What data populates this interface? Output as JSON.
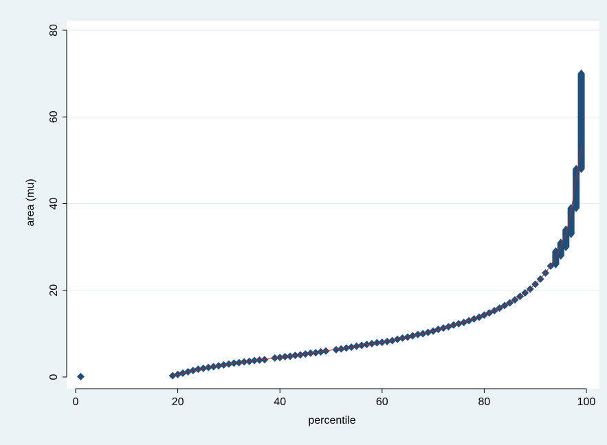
{
  "colors": {
    "outer_background": "#eaf2f3",
    "plot_background": "#ffffff",
    "marker": "#1f4e79",
    "fit_line": "#b0282e",
    "grid": "#e4ecec",
    "axis": "#000000"
  },
  "chart_data": {
    "type": "scatter",
    "xlabel": "percentile",
    "ylabel": "area (mu)",
    "xlim": [
      0,
      100
    ],
    "ylim": [
      0,
      80
    ],
    "x_ticks": [
      0,
      20,
      40,
      60,
      80,
      100
    ],
    "y_ticks": [
      0,
      20,
      40,
      60,
      80
    ],
    "grid": "horizontal",
    "marker": "diamond",
    "series": [
      {
        "values": [
          {
            "x": 1,
            "y": 0.1
          },
          {
            "x": 19,
            "y": 0.3
          },
          {
            "x": 20,
            "y": 0.6
          },
          {
            "x": 21,
            "y": 0.9
          },
          {
            "x": 22,
            "y": 1.2
          },
          {
            "x": 23,
            "y": 1.5
          },
          {
            "x": 24,
            "y": 1.8
          },
          {
            "x": 25,
            "y": 2.0
          },
          {
            "x": 26,
            "y": 2.2
          },
          {
            "x": 27,
            "y": 2.4
          },
          {
            "x": 28,
            "y": 2.6
          },
          {
            "x": 29,
            "y": 2.8
          },
          {
            "x": 30,
            "y": 3.0
          },
          {
            "x": 31,
            "y": 3.2
          },
          {
            "x": 32,
            "y": 3.3
          },
          {
            "x": 33,
            "y": 3.5
          },
          {
            "x": 34,
            "y": 3.6
          },
          {
            "x": 35,
            "y": 3.8
          },
          {
            "x": 36,
            "y": 3.9
          },
          {
            "x": 37,
            "y": 4.0
          },
          {
            "x": 39,
            "y": 4.4
          },
          {
            "x": 40,
            "y": 4.5
          },
          {
            "x": 41,
            "y": 4.7
          },
          {
            "x": 42,
            "y": 4.8
          },
          {
            "x": 43,
            "y": 5.0
          },
          {
            "x": 44,
            "y": 5.1
          },
          {
            "x": 45,
            "y": 5.3
          },
          {
            "x": 46,
            "y": 5.5
          },
          {
            "x": 47,
            "y": 5.6
          },
          {
            "x": 48,
            "y": 5.8
          },
          {
            "x": 49,
            "y": 6.0
          },
          {
            "x": 51,
            "y": 6.3
          },
          {
            "x": 52,
            "y": 6.5
          },
          {
            "x": 53,
            "y": 6.7
          },
          {
            "x": 54,
            "y": 6.9
          },
          {
            "x": 55,
            "y": 7.1
          },
          {
            "x": 56,
            "y": 7.3
          },
          {
            "x": 57,
            "y": 7.5
          },
          {
            "x": 58,
            "y": 7.7
          },
          {
            "x": 59,
            "y": 7.9
          },
          {
            "x": 60,
            "y": 8.0
          },
          {
            "x": 61,
            "y": 8.2
          },
          {
            "x": 62,
            "y": 8.4
          },
          {
            "x": 63,
            "y": 8.7
          },
          {
            "x": 64,
            "y": 9.0
          },
          {
            "x": 65,
            "y": 9.2
          },
          {
            "x": 66,
            "y": 9.5
          },
          {
            "x": 67,
            "y": 9.8
          },
          {
            "x": 68,
            "y": 10.0
          },
          {
            "x": 69,
            "y": 10.3
          },
          {
            "x": 70,
            "y": 10.6
          },
          {
            "x": 71,
            "y": 11.0
          },
          {
            "x": 72,
            "y": 11.3
          },
          {
            "x": 73,
            "y": 11.6
          },
          {
            "x": 74,
            "y": 12.0
          },
          {
            "x": 75,
            "y": 12.3
          },
          {
            "x": 76,
            "y": 12.6
          },
          {
            "x": 77,
            "y": 13.0
          },
          {
            "x": 78,
            "y": 13.4
          },
          {
            "x": 79,
            "y": 13.8
          },
          {
            "x": 80,
            "y": 14.3
          },
          {
            "x": 81,
            "y": 14.8
          },
          {
            "x": 82,
            "y": 15.3
          },
          {
            "x": 83,
            "y": 15.9
          },
          {
            "x": 84,
            "y": 16.5
          },
          {
            "x": 85,
            "y": 17.1
          },
          {
            "x": 86,
            "y": 17.8
          },
          {
            "x": 87,
            "y": 18.6
          },
          {
            "x": 88,
            "y": 19.4
          },
          {
            "x": 89,
            "y": 20.3
          },
          {
            "x": 90,
            "y": 21.4
          },
          {
            "x": 91,
            "y": 22.6
          },
          {
            "x": 92,
            "y": 24.0
          },
          {
            "x": 93,
            "y": 25.6
          },
          {
            "x": 94,
            "y": 27.5
          },
          {
            "x": 95,
            "y": 29.8
          },
          {
            "x": 96,
            "y": 33.0
          },
          {
            "x": 97,
            "y": 38.0
          },
          {
            "x": 98,
            "y": 47.0
          },
          {
            "x": 99,
            "y": 60.0
          }
        ],
        "vertical_bands": [
          {
            "x": 94,
            "y_min": 26,
            "y_max": 29
          },
          {
            "x": 95,
            "y_min": 28,
            "y_max": 31
          },
          {
            "x": 96,
            "y_min": 30,
            "y_max": 34
          },
          {
            "x": 97,
            "y_min": 33,
            "y_max": 39
          },
          {
            "x": 98,
            "y_min": 39,
            "y_max": 48
          },
          {
            "x": 99,
            "y_min": 48,
            "y_max": 70
          }
        ]
      }
    ],
    "fit_line": [
      {
        "x": 19,
        "y": 0.3
      },
      {
        "x": 25,
        "y": 2.0
      },
      {
        "x": 30,
        "y": 3.0
      },
      {
        "x": 35,
        "y": 3.8
      },
      {
        "x": 40,
        "y": 4.5
      },
      {
        "x": 45,
        "y": 5.3
      },
      {
        "x": 50,
        "y": 6.2
      },
      {
        "x": 55,
        "y": 7.1
      },
      {
        "x": 60,
        "y": 8.0
      },
      {
        "x": 65,
        "y": 9.2
      },
      {
        "x": 70,
        "y": 10.6
      },
      {
        "x": 75,
        "y": 12.3
      },
      {
        "x": 80,
        "y": 14.3
      },
      {
        "x": 85,
        "y": 17.1
      },
      {
        "x": 88,
        "y": 19.4
      },
      {
        "x": 90,
        "y": 21.4
      },
      {
        "x": 92,
        "y": 24.0
      },
      {
        "x": 94,
        "y": 27.5
      },
      {
        "x": 96,
        "y": 33.0
      },
      {
        "x": 97,
        "y": 38.0
      },
      {
        "x": 98,
        "y": 46.0
      },
      {
        "x": 99,
        "y": 53.0
      }
    ]
  }
}
